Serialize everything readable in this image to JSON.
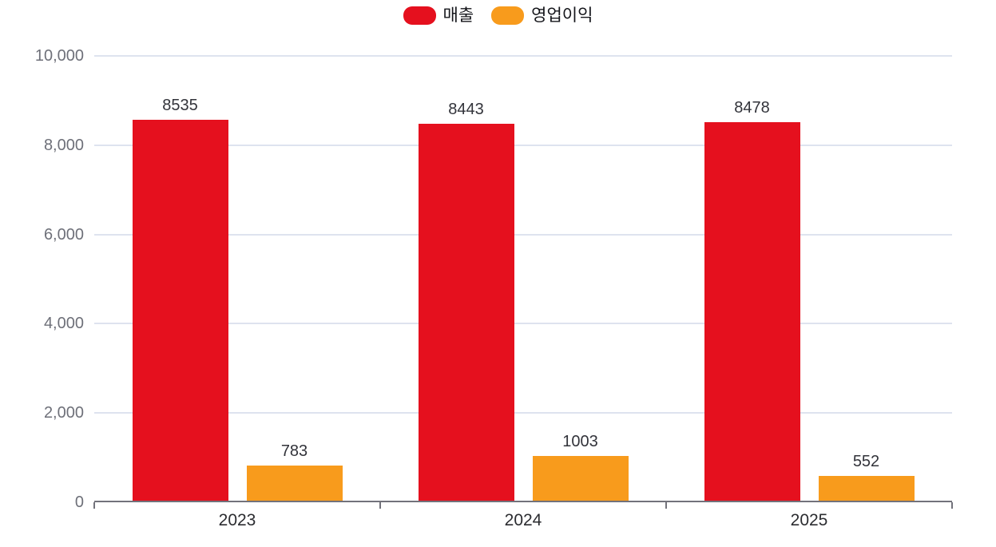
{
  "chart_data": {
    "type": "bar",
    "title": "",
    "xlabel": "",
    "ylabel": "",
    "categories": [
      "2023",
      "2024",
      "2025"
    ],
    "series": [
      {
        "name": "매출",
        "color": "#e5101e",
        "values": [
          8535,
          8443,
          8478
        ]
      },
      {
        "name": "영업이익",
        "color": "#f89b1c",
        "values": [
          783,
          1003,
          552
        ]
      }
    ],
    "ylim": [
      0,
      10000
    ],
    "y_ticks": [
      0,
      2000,
      4000,
      6000,
      8000,
      10000
    ],
    "y_tick_labels": [
      "0",
      "2,000",
      "4,000",
      "6,000",
      "8,000",
      "10,000"
    ],
    "grid": true,
    "legend_position": "top"
  },
  "colors": {
    "background": "#ffffff",
    "grid_line": "#dee3ef",
    "axis_line": "#72727b",
    "y_label": "#6e7079",
    "x_label": "#2b2c30",
    "value_label": "#32333a"
  }
}
